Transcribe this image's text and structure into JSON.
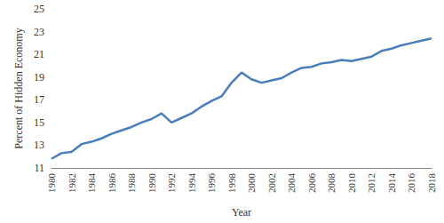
{
  "chart_data": {
    "type": "line",
    "x_label": "Year",
    "y_label": "Percent of Hidden Economy",
    "categories": [
      "1980",
      null,
      "1982",
      null,
      "1984",
      null,
      "1986",
      null,
      "1988",
      null,
      "1990",
      null,
      "1992",
      null,
      "1994",
      null,
      "1996",
      null,
      "1998",
      null,
      "2000",
      null,
      "2002",
      null,
      "2004",
      null,
      "2006",
      null,
      "2008",
      null,
      "2010",
      null,
      "2012",
      null,
      "2014",
      null,
      "2016",
      null,
      "2018"
    ],
    "values": [
      11.8,
      12.3,
      12.4,
      13.1,
      13.3,
      13.6,
      14.0,
      14.3,
      14.6,
      15.0,
      15.3,
      15.8,
      15.0,
      15.4,
      15.8,
      16.4,
      16.9,
      17.3,
      18.5,
      19.4,
      18.8,
      18.5,
      18.7,
      18.9,
      19.4,
      19.8,
      19.9,
      20.2,
      20.3,
      20.5,
      20.4,
      20.6,
      20.8,
      21.3,
      21.5,
      21.8,
      22.0,
      22.2,
      22.4
    ],
    "color": "#4a7ebb",
    "ylim": [
      11,
      25
    ],
    "yticks": [
      11,
      13,
      15,
      17,
      19,
      21,
      23,
      25
    ],
    "grid": false
  }
}
